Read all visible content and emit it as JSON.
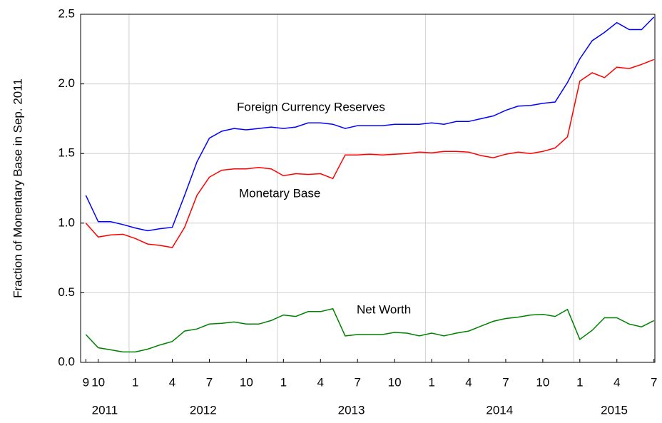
{
  "chart_data": {
    "type": "line",
    "ylabel": "Fraction of Monentary Base in Sep. 2011",
    "x": [
      "2011-09",
      "2011-10",
      "2011-11",
      "2011-12",
      "2012-01",
      "2012-02",
      "2012-03",
      "2012-04",
      "2012-05",
      "2012-06",
      "2012-07",
      "2012-08",
      "2012-09",
      "2012-10",
      "2012-11",
      "2012-12",
      "2013-01",
      "2013-02",
      "2013-03",
      "2013-04",
      "2013-05",
      "2013-06",
      "2013-07",
      "2013-08",
      "2013-09",
      "2013-10",
      "2013-11",
      "2013-12",
      "2014-01",
      "2014-02",
      "2014-03",
      "2014-04",
      "2014-05",
      "2014-06",
      "2014-07",
      "2014-08",
      "2014-09",
      "2014-10",
      "2014-11",
      "2014-12",
      "2015-01",
      "2015-02",
      "2015-03",
      "2015-04",
      "2015-05",
      "2015-06",
      "2015-07"
    ],
    "series": [
      {
        "name": "Foreign Currency Reserves",
        "color": "#0000ff",
        "values": [
          1.2,
          1.01,
          1.01,
          0.99,
          0.965,
          0.945,
          0.96,
          0.97,
          1.2,
          1.44,
          1.61,
          1.66,
          1.68,
          1.67,
          1.68,
          1.69,
          1.68,
          1.69,
          1.72,
          1.72,
          1.71,
          1.68,
          1.7,
          1.7,
          1.7,
          1.71,
          1.71,
          1.71,
          1.72,
          1.71,
          1.73,
          1.73,
          1.75,
          1.77,
          1.81,
          1.84,
          1.845,
          1.86,
          1.87,
          2.01,
          2.18,
          2.31,
          2.37,
          2.44,
          2.39,
          2.39,
          2.48
        ]
      },
      {
        "name": "Monetary Base",
        "color": "#ff0000",
        "values": [
          1.0,
          0.9,
          0.915,
          0.92,
          0.89,
          0.85,
          0.84,
          0.825,
          0.97,
          1.2,
          1.33,
          1.38,
          1.39,
          1.39,
          1.4,
          1.39,
          1.34,
          1.355,
          1.35,
          1.355,
          1.32,
          1.49,
          1.49,
          1.495,
          1.49,
          1.495,
          1.5,
          1.51,
          1.505,
          1.515,
          1.515,
          1.51,
          1.485,
          1.47,
          1.495,
          1.51,
          1.5,
          1.515,
          1.54,
          1.62,
          2.02,
          2.08,
          2.045,
          2.12,
          2.11,
          2.14,
          2.175
        ]
      },
      {
        "name": "Net Worth",
        "color": "#008000",
        "values": [
          0.2,
          0.105,
          0.09,
          0.075,
          0.075,
          0.095,
          0.125,
          0.15,
          0.225,
          0.24,
          0.275,
          0.28,
          0.29,
          0.275,
          0.275,
          0.3,
          0.34,
          0.33,
          0.365,
          0.365,
          0.385,
          0.19,
          0.2,
          0.2,
          0.2,
          0.215,
          0.21,
          0.19,
          0.21,
          0.19,
          0.21,
          0.225,
          0.26,
          0.295,
          0.315,
          0.325,
          0.34,
          0.345,
          0.33,
          0.38,
          0.165,
          0.23,
          0.32,
          0.32,
          0.275,
          0.255,
          0.3
        ]
      }
    ],
    "xlim": [
      2011.673,
      2015.548
    ],
    "xticks": [
      {
        "value": "2011-09",
        "label": "9"
      },
      {
        "value": "2011-10",
        "label": "10"
      },
      {
        "value": "2012-01",
        "label": "1"
      },
      {
        "value": "2012-04",
        "label": "4"
      },
      {
        "value": "2012-07",
        "label": "7"
      },
      {
        "value": "2012-10",
        "label": "10"
      },
      {
        "value": "2013-01",
        "label": "1"
      },
      {
        "value": "2013-04",
        "label": "4"
      },
      {
        "value": "2013-07",
        "label": "7"
      },
      {
        "value": "2013-10",
        "label": "10"
      },
      {
        "value": "2014-01",
        "label": "1"
      },
      {
        "value": "2014-04",
        "label": "4"
      },
      {
        "value": "2014-07",
        "label": "7"
      },
      {
        "value": "2014-10",
        "label": "10"
      },
      {
        "value": "2015-01",
        "label": "1"
      },
      {
        "value": "2015-04",
        "label": "4"
      },
      {
        "value": "2015-07",
        "label": "7"
      }
    ],
    "years": [
      2011,
      2012,
      2013,
      2014,
      2015
    ],
    "ylim": [
      0,
      2.5
    ],
    "yticks": [
      {
        "value": 0,
        "label": "0.0"
      },
      {
        "value": 0.5,
        "label": "0.5"
      },
      {
        "value": 1,
        "label": "1.0"
      },
      {
        "value": 1.5,
        "label": "1.5"
      },
      {
        "value": 2,
        "label": "2.0"
      },
      {
        "value": 2.5,
        "label": "2.5"
      }
    ],
    "grid": true
  }
}
